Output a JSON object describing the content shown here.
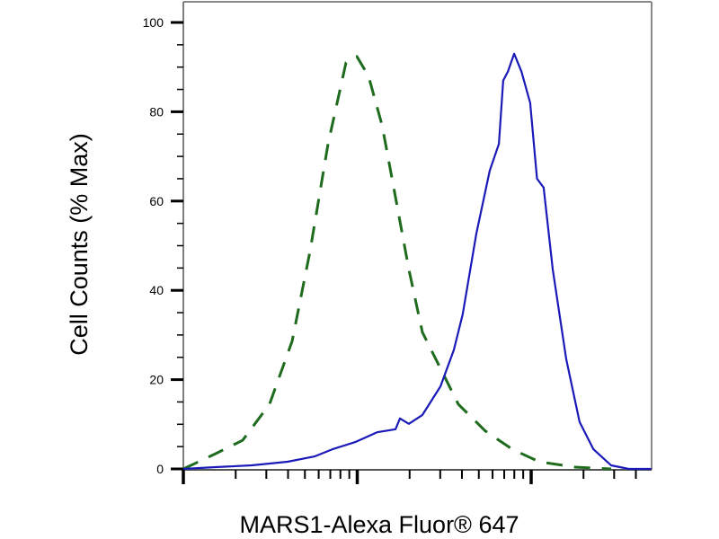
{
  "chart_data": {
    "type": "line",
    "title": "",
    "xlabel": "MARS1-Alexa Fluor® 647",
    "ylabel": "Cell Counts (% Max)",
    "xscale": "log",
    "xlim": [
      1,
      491
    ],
    "ylim": [
      0,
      100
    ],
    "yticks": [
      "0",
      "20",
      "40",
      "60",
      "80",
      "100"
    ],
    "grid": false,
    "legend": "none",
    "series": [
      {
        "style": "dashed",
        "color": "#1e6b1e",
        "x": [
          1,
          1.53,
          2.19,
          3.13,
          4.22,
          5.35,
          6.79,
          8.62,
          9.94,
          11.6,
          13.9,
          16.6,
          19.8,
          23.7,
          30.1,
          38.1,
          54.5,
          77.9,
          111,
          179,
          288
        ],
        "y": [
          0,
          3.4,
          6.4,
          14.5,
          28.6,
          48.7,
          72.8,
          91,
          92.4,
          88,
          76.9,
          60.8,
          44.7,
          30.6,
          22.5,
          14.5,
          8.5,
          4.4,
          1.6,
          0.4,
          0
        ]
      },
      {
        "style": "solid",
        "color": "#1a1ab8",
        "x": [
          1,
          1.53,
          2.47,
          3.97,
          5.68,
          7.2,
          9.7,
          13.0,
          16.6,
          17.6,
          19.8,
          23.7,
          30.1,
          35.9,
          40.4,
          48.4,
          57.8,
          65.2,
          69.1,
          73.5,
          79.9,
          87.9,
          98.7,
          108,
          118,
          133,
          159,
          190,
          228,
          288,
          364,
          491
        ],
        "y": [
          0,
          0.4,
          0.8,
          1.6,
          2.8,
          4.4,
          6,
          8.2,
          8.9,
          11.3,
          10.1,
          12.1,
          18.5,
          26.6,
          34.6,
          52.7,
          66.8,
          72.8,
          87,
          89,
          93,
          89,
          82,
          65,
          63,
          44.7,
          24.6,
          10.5,
          4.4,
          0.8,
          0,
          0
        ]
      }
    ]
  }
}
